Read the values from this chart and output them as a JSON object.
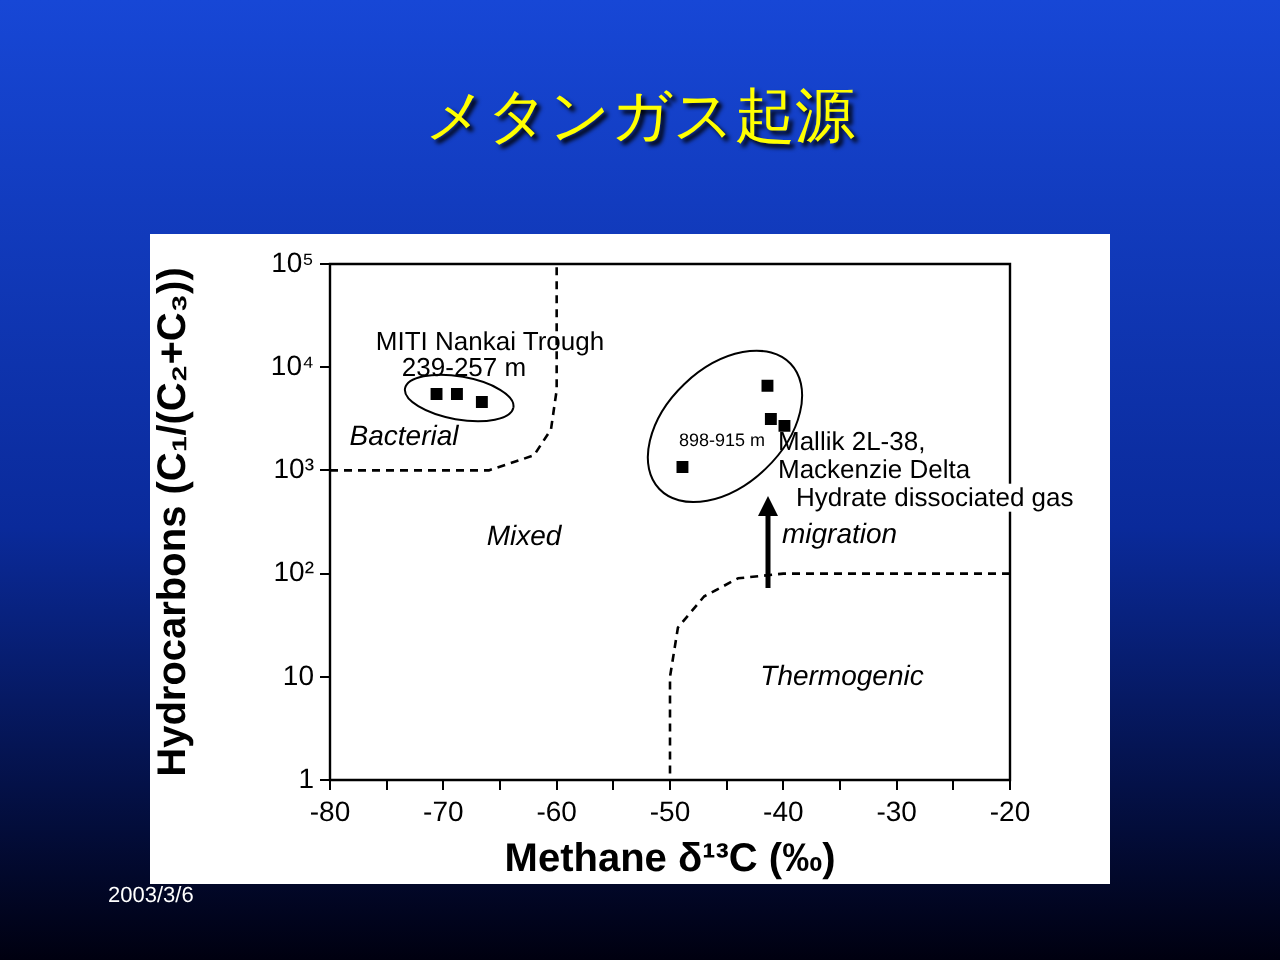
{
  "chart_data": {
    "type": "scatter",
    "title": "メタンガス起源",
    "xlabel": "Methane δ¹³C (‰)",
    "ylabel": "Hydrocarbons (C₁/(C₂+C₃))",
    "xlim": [
      -80,
      -20
    ],
    "xticks": [
      -80,
      {
        "value": -75,
        "label": null
      },
      -70,
      {
        "value": -65,
        "label": null
      },
      -60,
      {
        "value": -55,
        "label": null
      },
      -50,
      {
        "value": -45,
        "label": null
      },
      -40,
      {
        "value": -35,
        "label": null
      },
      -30,
      {
        "value": -25,
        "label": null
      },
      -20
    ],
    "ylim": [
      1,
      100000
    ],
    "yticks": [
      1,
      10,
      {
        "value": 100,
        "label": "10²"
      },
      {
        "value": 1000,
        "label": "10³"
      },
      {
        "value": 10000,
        "label": "10⁴"
      },
      {
        "value": 100000,
        "label": "10⁵"
      }
    ],
    "log": "y",
    "grid": false,
    "legend": false,
    "marker": "square",
    "series": [
      {
        "color": "#000000",
        "x": [
          -70.6,
          -68.8,
          -66.6
        ],
        "values": [
          5500,
          5500,
          4600
        ]
      },
      {
        "color": "#000000",
        "x": [
          -41.4,
          -41.1,
          -39.9,
          -48.9
        ],
        "values": [
          6600,
          3150,
          2700,
          1080
        ]
      },
      {
        "type": "line",
        "color": "#000000",
        "line_style": "dashed",
        "marker": "none",
        "x": [
          -80,
          -66,
          -62,
          -60.5,
          -60,
          -60
        ],
        "values": [
          1000,
          1000,
          1400,
          2500,
          6000,
          100000
        ]
      },
      {
        "type": "line",
        "color": "#000000",
        "line_style": "dashed",
        "marker": "none",
        "x": [
          -20,
          -40,
          -44,
          -47,
          -49.3,
          -50,
          -50
        ],
        "values": [
          100,
          100,
          90,
          60,
          30,
          10,
          1
        ]
      }
    ],
    "annotations": [
      "MITI Nankai Trough",
      "239-257 m",
      "Bacterial",
      "Mixed",
      "Thermogenic",
      "migration",
      "898-915 m",
      "Mallik 2L-38,",
      "Mackenzie Delta",
      "Hydrate dissociated gas",
      "2003/3/6"
    ]
  }
}
